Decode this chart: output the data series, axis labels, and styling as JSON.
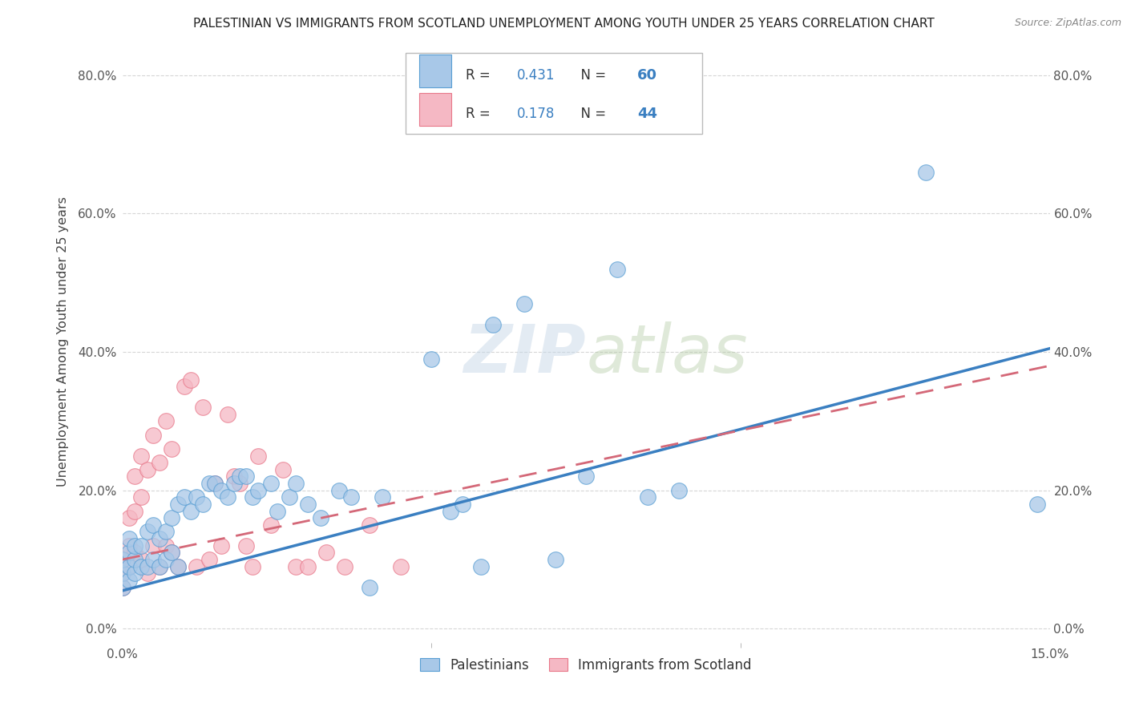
{
  "title": "PALESTINIAN VS IMMIGRANTS FROM SCOTLAND UNEMPLOYMENT AMONG YOUTH UNDER 25 YEARS CORRELATION CHART",
  "source": "Source: ZipAtlas.com",
  "ylabel": "Unemployment Among Youth under 25 years",
  "xlim": [
    0.0,
    0.15
  ],
  "ylim": [
    -0.02,
    0.85
  ],
  "xtick_positions": [
    0.0,
    0.15
  ],
  "xtick_labels": [
    "0.0%",
    "15.0%"
  ],
  "ytick_positions": [
    0.0,
    0.2,
    0.4,
    0.6,
    0.8
  ],
  "ytick_labels": [
    "0.0%",
    "20.0%",
    "40.0%",
    "60.0%",
    "80.0%"
  ],
  "legend_R1": "0.431",
  "legend_N1": "60",
  "legend_R2": "0.178",
  "legend_N2": "44",
  "blue_scatter": "#a8c8e8",
  "pink_scatter": "#f5b8c4",
  "blue_edge": "#5a9fd4",
  "pink_edge": "#e8788a",
  "blue_line": "#3a7fc1",
  "pink_line": "#d46878",
  "legend_text_color": "#3a7fc1",
  "watermark_color": "#c8d8e8",
  "series1_label": "Palestinians",
  "series2_label": "Immigrants from Scotland",
  "pal_x": [
    0.0,
    0.0,
    0.0,
    0.001,
    0.001,
    0.001,
    0.001,
    0.002,
    0.002,
    0.002,
    0.003,
    0.003,
    0.004,
    0.004,
    0.005,
    0.005,
    0.006,
    0.006,
    0.007,
    0.007,
    0.008,
    0.008,
    0.009,
    0.009,
    0.01,
    0.011,
    0.012,
    0.013,
    0.014,
    0.015,
    0.016,
    0.017,
    0.018,
    0.019,
    0.02,
    0.021,
    0.022,
    0.024,
    0.025,
    0.027,
    0.028,
    0.03,
    0.032,
    0.035,
    0.037,
    0.04,
    0.042,
    0.05,
    0.053,
    0.055,
    0.058,
    0.06,
    0.065,
    0.07,
    0.075,
    0.08,
    0.085,
    0.09,
    0.13,
    0.148
  ],
  "pal_y": [
    0.06,
    0.08,
    0.1,
    0.07,
    0.09,
    0.11,
    0.13,
    0.08,
    0.1,
    0.12,
    0.09,
    0.12,
    0.09,
    0.14,
    0.1,
    0.15,
    0.09,
    0.13,
    0.1,
    0.14,
    0.11,
    0.16,
    0.09,
    0.18,
    0.19,
    0.17,
    0.19,
    0.18,
    0.21,
    0.21,
    0.2,
    0.19,
    0.21,
    0.22,
    0.22,
    0.19,
    0.2,
    0.21,
    0.17,
    0.19,
    0.21,
    0.18,
    0.16,
    0.2,
    0.19,
    0.06,
    0.19,
    0.39,
    0.17,
    0.18,
    0.09,
    0.44,
    0.47,
    0.1,
    0.22,
    0.52,
    0.19,
    0.2,
    0.66,
    0.18
  ],
  "sco_x": [
    0.0,
    0.0,
    0.0,
    0.001,
    0.001,
    0.001,
    0.002,
    0.002,
    0.002,
    0.003,
    0.003,
    0.003,
    0.004,
    0.004,
    0.005,
    0.005,
    0.006,
    0.006,
    0.007,
    0.007,
    0.008,
    0.008,
    0.009,
    0.01,
    0.011,
    0.012,
    0.013,
    0.014,
    0.015,
    0.016,
    0.017,
    0.018,
    0.019,
    0.02,
    0.021,
    0.022,
    0.024,
    0.026,
    0.028,
    0.03,
    0.033,
    0.036,
    0.04,
    0.045
  ],
  "sco_y": [
    0.06,
    0.08,
    0.1,
    0.09,
    0.12,
    0.16,
    0.11,
    0.17,
    0.22,
    0.1,
    0.19,
    0.25,
    0.08,
    0.23,
    0.12,
    0.28,
    0.09,
    0.24,
    0.12,
    0.3,
    0.11,
    0.26,
    0.09,
    0.35,
    0.36,
    0.09,
    0.32,
    0.1,
    0.21,
    0.12,
    0.31,
    0.22,
    0.21,
    0.12,
    0.09,
    0.25,
    0.15,
    0.23,
    0.09,
    0.09,
    0.11,
    0.09,
    0.15,
    0.09
  ],
  "blue_trendline_x0": 0.0,
  "blue_trendline_y0": 0.055,
  "blue_trendline_x1": 0.15,
  "blue_trendline_y1": 0.405,
  "pink_trendline_x0": 0.0,
  "pink_trendline_y0": 0.1,
  "pink_trendline_x1": 0.15,
  "pink_trendline_y1": 0.38
}
